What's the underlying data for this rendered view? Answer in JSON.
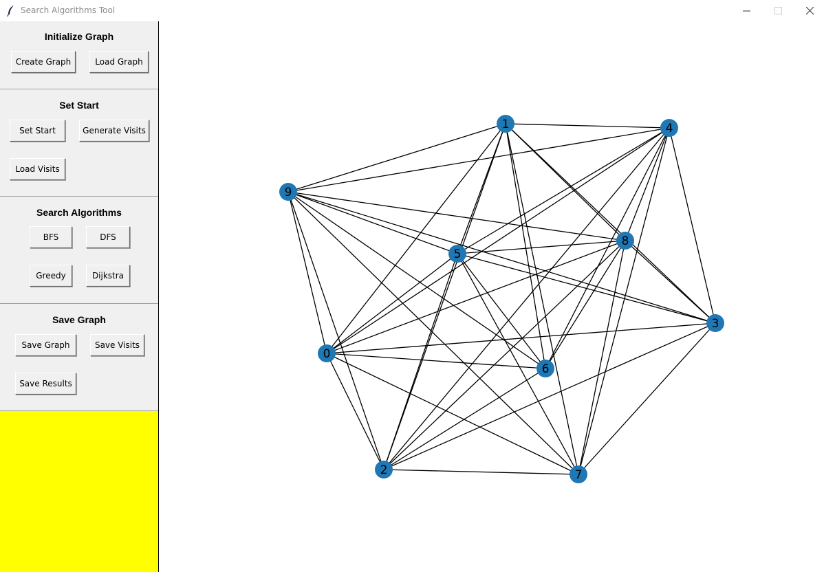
{
  "window": {
    "title": "Search Algorithms Tool",
    "icon": "feather-icon",
    "controls": [
      "minimize-icon",
      "maximize-icon",
      "close-icon"
    ]
  },
  "sidebar": {
    "initialize": {
      "title": "Initialize Graph",
      "create_label": "Create Graph",
      "load_label": "Load Graph"
    },
    "set_start": {
      "title": "Set Start",
      "set_start_label": "Set Start",
      "generate_visits_label": "Generate Visits",
      "load_visits_label": "Load Visits"
    },
    "search": {
      "title": "Search Algorithms",
      "bfs_label": "BFS",
      "dfs_label": "DFS",
      "greedy_label": "Greedy",
      "dijkstra_label": "Dijkstra"
    },
    "save": {
      "title": "Save Graph",
      "save_graph_label": "Save Graph",
      "save_visits_label": "Save Visits",
      "save_results_label": "Save Results"
    },
    "output_panel_color": "#ffff00"
  },
  "graph": {
    "node_color": "#1f77b4",
    "edge_color": "#000000",
    "nodes": [
      {
        "id": "0"
      },
      {
        "id": "1"
      },
      {
        "id": "2"
      },
      {
        "id": "3"
      },
      {
        "id": "4"
      },
      {
        "id": "5"
      },
      {
        "id": "6"
      },
      {
        "id": "7"
      },
      {
        "id": "8"
      },
      {
        "id": "9"
      }
    ],
    "edges": [
      [
        "1",
        "4"
      ],
      [
        "1",
        "9"
      ],
      [
        "1",
        "5"
      ],
      [
        "1",
        "8"
      ],
      [
        "1",
        "3"
      ],
      [
        "1",
        "6"
      ],
      [
        "1",
        "7"
      ],
      [
        "1",
        "0"
      ],
      [
        "1",
        "2"
      ],
      [
        "4",
        "9"
      ],
      [
        "4",
        "5"
      ],
      [
        "4",
        "8"
      ],
      [
        "4",
        "3"
      ],
      [
        "4",
        "6"
      ],
      [
        "4",
        "7"
      ],
      [
        "4",
        "0"
      ],
      [
        "4",
        "2"
      ],
      [
        "9",
        "5"
      ],
      [
        "9",
        "8"
      ],
      [
        "9",
        "3"
      ],
      [
        "9",
        "6"
      ],
      [
        "9",
        "7"
      ],
      [
        "9",
        "0"
      ],
      [
        "9",
        "2"
      ],
      [
        "5",
        "8"
      ],
      [
        "5",
        "3"
      ],
      [
        "5",
        "6"
      ],
      [
        "5",
        "7"
      ],
      [
        "5",
        "0"
      ],
      [
        "5",
        "2"
      ],
      [
        "8",
        "3"
      ],
      [
        "8",
        "6"
      ],
      [
        "8",
        "7"
      ],
      [
        "8",
        "0"
      ],
      [
        "8",
        "2"
      ],
      [
        "3",
        "0"
      ],
      [
        "3",
        "7"
      ],
      [
        "3",
        "2"
      ],
      [
        "0",
        "6"
      ],
      [
        "0",
        "2"
      ],
      [
        "0",
        "7"
      ],
      [
        "6",
        "2"
      ],
      [
        "2",
        "7"
      ]
    ]
  }
}
